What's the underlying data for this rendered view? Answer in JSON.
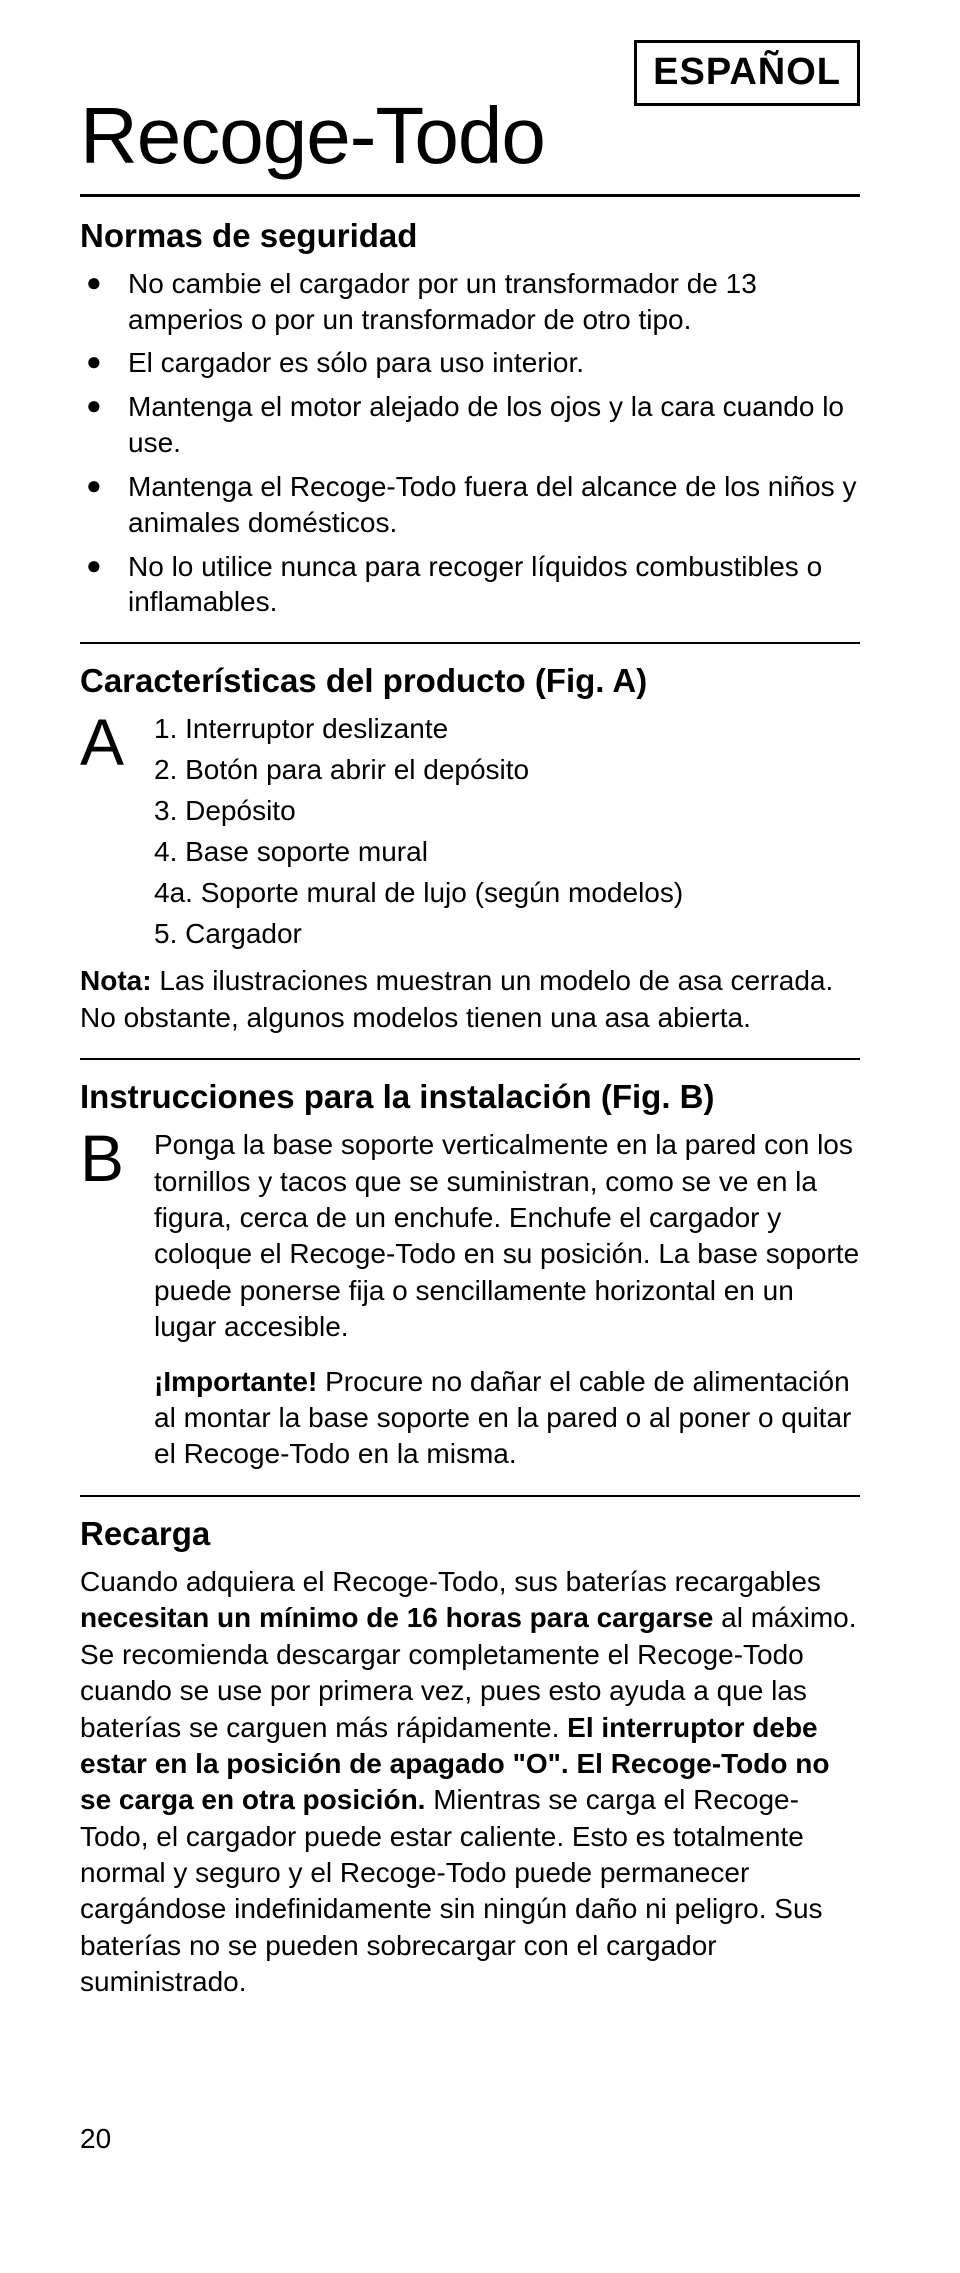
{
  "language_label": "ESPAÑOL",
  "title": "Recoge-Todo",
  "safety": {
    "heading": "Normas de seguridad",
    "items": [
      "No cambie el cargador por un transformador de 13 amperios o por un transformador de otro tipo.",
      "El cargador es sólo para uso interior.",
      "Mantenga el motor alejado de los ojos y la cara cuando lo use.",
      "Mantenga el Recoge-Todo fuera del alcance de los niños y animales domésticos.",
      "No lo utilice nunca para recoger líquidos combustibles o inflamables."
    ]
  },
  "features": {
    "heading": "Características del producto (Fig. A)",
    "letter": "A",
    "items": [
      "1.  Interruptor deslizante",
      "2.  Botón para abrir el depósito",
      "3.  Depósito",
      "4.  Base soporte mural",
      "4a. Soporte mural de lujo (según modelos)",
      "5.  Cargador"
    ],
    "note_lead": "Nota:",
    "note_text": " Las ilustraciones muestran un modelo de asa cerrada. No obstante, algunos modelos tienen una asa abierta."
  },
  "install": {
    "heading": "Instrucciones para la instalación (Fig. B)",
    "letter": "B",
    "para1": "Ponga la base soporte verticalmente en la pared con los tornillos y tacos que se suministran, como se ve en la figura, cerca de un enchufe. Enchufe el cargador y coloque el Recoge-Todo en su posición. La base soporte puede ponerse fija o sencillamente horizontal en un lugar accesible.",
    "important_lead": "¡Importante!",
    "para2": " Procure no dañar el cable de alimentación al montar la base soporte en la pared o al poner o quitar el Recoge-Todo en la misma."
  },
  "recharge": {
    "heading": "Recarga",
    "t1": "Cuando adquiera el Recoge-Todo, sus baterías recargables ",
    "b1": "necesitan un mínimo de 16 horas para cargarse",
    "t2": " al máximo. Se recomienda descargar completamente el Recoge-Todo cuando se use por primera vez, pues esto ayuda a que las baterías se carguen más rápidamente. ",
    "b2": "El interruptor debe estar en la posición de apagado \"O\". El Recoge-Todo no se carga en otra posición.",
    "t3": " Mientras se carga el Recoge-Todo, el cargador puede estar caliente. Esto es totalmente normal y seguro y el Recoge-Todo puede permanecer cargándose indefinidamente sin ningún daño ni peligro. Sus baterías no se pueden sobrecargar con el cargador suministrado."
  },
  "page_number": "20"
}
